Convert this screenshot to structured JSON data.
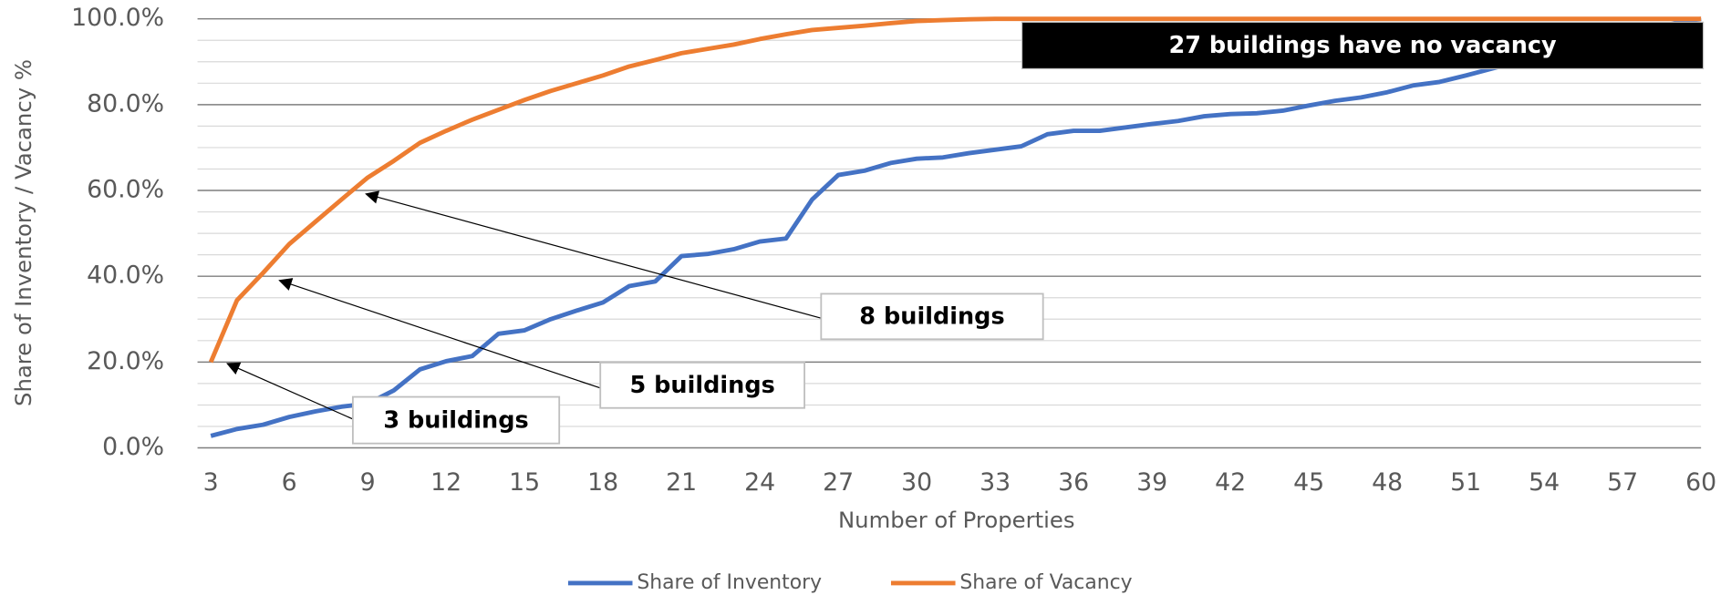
{
  "chart_data": {
    "type": "line",
    "y_axis_label": "Share of Inventory / Vacancy %",
    "x_axis_label": "Number of Properties",
    "x": [
      3,
      4,
      5,
      6,
      7,
      8,
      9,
      10,
      11,
      12,
      13,
      14,
      15,
      16,
      17,
      18,
      19,
      20,
      21,
      22,
      23,
      24,
      25,
      26,
      27,
      28,
      29,
      30,
      31,
      32,
      33,
      34,
      35,
      36,
      37,
      38,
      39,
      40,
      41,
      42,
      43,
      44,
      45,
      46,
      47,
      48,
      49,
      50,
      51,
      52,
      53,
      54,
      55,
      56,
      57,
      58,
      59,
      60
    ],
    "series": [
      {
        "name": "Share of Inventory",
        "color": "#4472c4",
        "values": [
          2.8,
          4.4,
          5.4,
          7.2,
          8.5,
          9.6,
          10.3,
          13.4,
          18.3,
          20.2,
          21.4,
          26.6,
          27.4,
          30,
          32,
          33.9,
          37.7,
          38.8,
          44.7,
          45.2,
          46.3,
          48.1,
          48.8,
          57.9,
          63.6,
          64.6,
          66.4,
          67.4,
          67.7,
          68.7,
          69.5,
          70.3,
          73.1,
          73.9,
          73.9,
          74.7,
          75.5,
          76.2,
          77.3,
          77.8,
          78,
          78.6,
          79.8,
          80.9,
          81.7,
          82.9,
          84.5,
          85.3,
          86.8,
          88.4,
          90,
          91.5,
          93,
          94.5,
          96,
          97.5,
          99,
          100
        ]
      },
      {
        "name": "Share of Vacancy",
        "color": "#ed7d31",
        "values": [
          20,
          34.4,
          40.8,
          47.5,
          52.7,
          57.9,
          63,
          66.9,
          71.1,
          73.9,
          76.5,
          78.8,
          81.1,
          83.2,
          85,
          86.8,
          88.9,
          90.4,
          92,
          93,
          94,
          95.3,
          96.4,
          97.4,
          97.9,
          98.4,
          99,
          99.5,
          99.7,
          99.9,
          100,
          100,
          100,
          100,
          100,
          100,
          100,
          100,
          100,
          100,
          100,
          100,
          100,
          100,
          100,
          100,
          100,
          100,
          100,
          100,
          100,
          100,
          100,
          100,
          100,
          100,
          100,
          100
        ]
      }
    ],
    "xlim": [
      3,
      60
    ],
    "xticks": [
      3,
      6,
      9,
      12,
      15,
      18,
      21,
      24,
      27,
      30,
      33,
      36,
      39,
      42,
      45,
      48,
      51,
      54,
      57,
      60
    ],
    "ylim": [
      0,
      100
    ],
    "yticks": [
      {
        "value": 0,
        "label": "0.0%"
      },
      {
        "value": 20,
        "label": "20.0%"
      },
      {
        "value": 40,
        "label": "40.0%"
      },
      {
        "value": 60,
        "label": "60.0%"
      },
      {
        "value": 80,
        "label": "80.0%"
      },
      {
        "value": 100,
        "label": "100.0%"
      }
    ],
    "minor_yticks": [
      5,
      10,
      15,
      25,
      30,
      35,
      45,
      50,
      55,
      65,
      70,
      75,
      85,
      90,
      95
    ],
    "grid": true,
    "legend": "bottom",
    "annotations": [
      "3 buildings",
      "5 buildings",
      "8 buildings",
      "27 buildings have no vacancy"
    ]
  }
}
